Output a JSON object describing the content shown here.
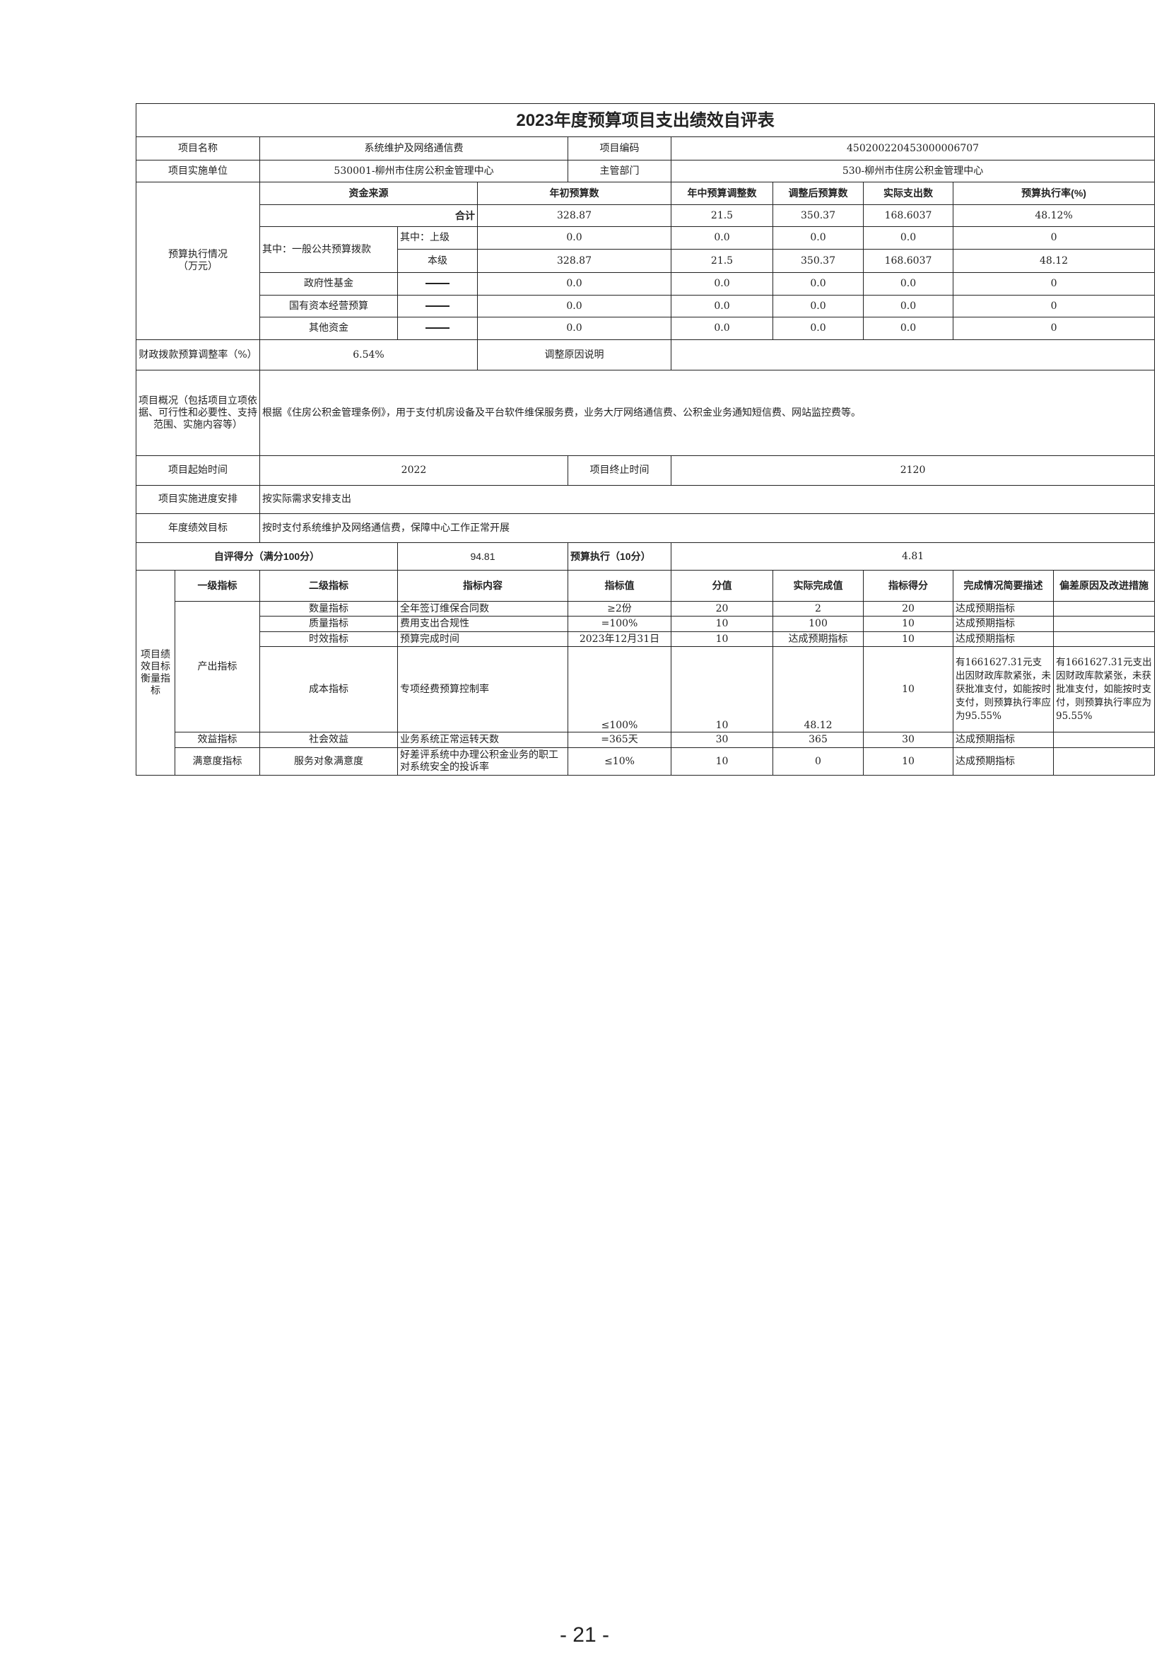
{
  "title": "2023年度预算项目支出绩效自评表",
  "info": {
    "name_label": "项目名称",
    "name": "系统维护及网络通信费",
    "code_label": "项目编码",
    "code": "450200220453000006707",
    "unit_label": "项目实施单位",
    "unit": "530001-柳州市住房公积金管理中心",
    "dept_label": "主管部门",
    "dept": "530-柳州市住房公积金管理中心"
  },
  "budget": {
    "section_label": "预算执行情况\n（万元）",
    "headers": [
      "资金来源",
      "年初预算数",
      "年中预算调整数",
      "调整后预算数",
      "实际支出数",
      "预算执行率(%)"
    ],
    "rows": [
      {
        "label": "合计",
        "values": [
          "328.87",
          "21.5",
          "350.37",
          "168.6037",
          "48.12%"
        ]
      },
      {
        "group": "其中：一般公共预算拨款",
        "label": "其中：上级",
        "values": [
          "0.0",
          "0.0",
          "0.0",
          "0.0",
          "0"
        ]
      },
      {
        "label": "本级",
        "values": [
          "328.87",
          "21.5",
          "350.37",
          "168.6037",
          "48.12"
        ]
      },
      {
        "label": "政府性基金",
        "values": [
          "0.0",
          "0.0",
          "0.0",
          "0.0",
          "0"
        ]
      },
      {
        "label": "国有资本经营预算",
        "values": [
          "0.0",
          "0.0",
          "0.0",
          "0.0",
          "0"
        ]
      },
      {
        "label": "其他资金",
        "values": [
          "0.0",
          "0.0",
          "0.0",
          "0.0",
          "0"
        ]
      }
    ]
  },
  "adjust": {
    "label": "财政拨款预算调整率（%）",
    "value": "6.54%",
    "reason_label": "调整原因说明",
    "reason": ""
  },
  "overview": {
    "label": "项目概况（包括项目立项依据、可行性和必要性、支持范围、实施内容等）",
    "text": "根据《住房公积金管理条例》，用于支付机房设备及平台软件维保服务费，业务大厅网络通信费、公积金业务通知短信费、网站监控费等。"
  },
  "time": {
    "start_label": "项目起始时间",
    "start": "2022",
    "end_label": "项目终止时间",
    "end": "2120"
  },
  "schedule": {
    "label": "项目实施进度安排",
    "text": "按实际需求安排支出"
  },
  "goal": {
    "label": "年度绩效目标",
    "text": "按时支付系统维护及网络通信费，保障中心工作正常开展"
  },
  "score": {
    "label": "自评得分（满分100分）",
    "value": "94.81",
    "exec_label": "预算执行（10分）",
    "exec_value": "4.81"
  },
  "indicators": {
    "section_label": "项目绩效目标衡量指标",
    "headers": [
      "一级指标",
      "二级指标",
      "指标内容",
      "指标值",
      "分值",
      "实际完成值",
      "指标得分",
      "完成情况简要描述",
      "偏差原因及改进措施"
    ],
    "rows": [
      {
        "l1": "产出指标",
        "l2": "数量指标",
        "content": "全年签订维保合同数",
        "target": "≥2份",
        "weight": "20",
        "actual": "2",
        "score": "20",
        "desc": "达成预期指标",
        "reason": ""
      },
      {
        "l2": "质量指标",
        "content": "费用支出合规性",
        "target": "=100%",
        "weight": "10",
        "actual": "100",
        "score": "10",
        "desc": "达成预期指标",
        "reason": ""
      },
      {
        "l2": "时效指标",
        "content": "预算完成时间",
        "target": "2023年12月31日",
        "weight": "10",
        "actual": "达成预期指标",
        "score": "10",
        "desc": "达成预期指标",
        "reason": ""
      },
      {
        "l2": "成本指标",
        "content": "专项经费预算控制率",
        "target": "≤100%",
        "weight": "10",
        "actual": "48.12",
        "score": "10",
        "desc": "有1661627.31元支出因财政库款紧张，未获批准支付，如能按时支付，则预算执行率应为95.55%",
        "reason": "有1661627.31元支出因财政库款紧张，未获批准支付，如能按时支付，则预算执行率应为95.55%"
      },
      {
        "l1": "效益指标",
        "l2": "社会效益",
        "content": "业务系统正常运转天数",
        "target": "=365天",
        "weight": "30",
        "actual": "365",
        "score": "30",
        "desc": "达成预期指标",
        "reason": ""
      },
      {
        "l1": "满意度指标",
        "l2": "服务对象满意度",
        "content": "好差评系统中办理公积金业务的职工对系统安全的投诉率",
        "target": "≤10%",
        "weight": "10",
        "actual": "0",
        "score": "10",
        "desc": "达成预期指标",
        "reason": ""
      }
    ]
  },
  "page_number": "- 21 -"
}
